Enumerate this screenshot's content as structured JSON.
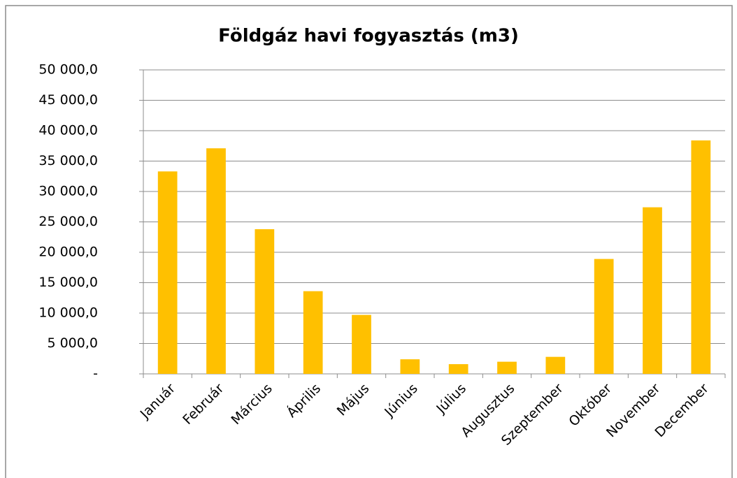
{
  "chart_data": {
    "type": "bar",
    "title": "Földgáz havi fogyasztás (m3)",
    "categories": [
      "Január",
      "Február",
      "Március",
      "Április",
      "Május",
      "Június",
      "Július",
      "Augusztus",
      "Szeptember",
      "Október",
      "November",
      "December"
    ],
    "values": [
      33300,
      37100,
      23800,
      13600,
      9700,
      2400,
      1600,
      2000,
      2800,
      18900,
      27400,
      38400
    ],
    "color": "#ffc000",
    "ylim": [
      0,
      50000
    ],
    "yticks": [
      {
        "value": 0,
        "label": "-"
      },
      {
        "value": 5000,
        "label": "5 000,0"
      },
      {
        "value": 10000,
        "label": "10 000,0"
      },
      {
        "value": 15000,
        "label": "15 000,0"
      },
      {
        "value": 20000,
        "label": "20 000,0"
      },
      {
        "value": 25000,
        "label": "25 000,0"
      },
      {
        "value": 30000,
        "label": "30 000,0"
      },
      {
        "value": 35000,
        "label": "35 000,0"
      },
      {
        "value": 40000,
        "label": "40 000,0"
      },
      {
        "value": 45000,
        "label": "45 000,0"
      },
      {
        "value": 50000,
        "label": "50 000,0"
      }
    ],
    "grid": true
  }
}
